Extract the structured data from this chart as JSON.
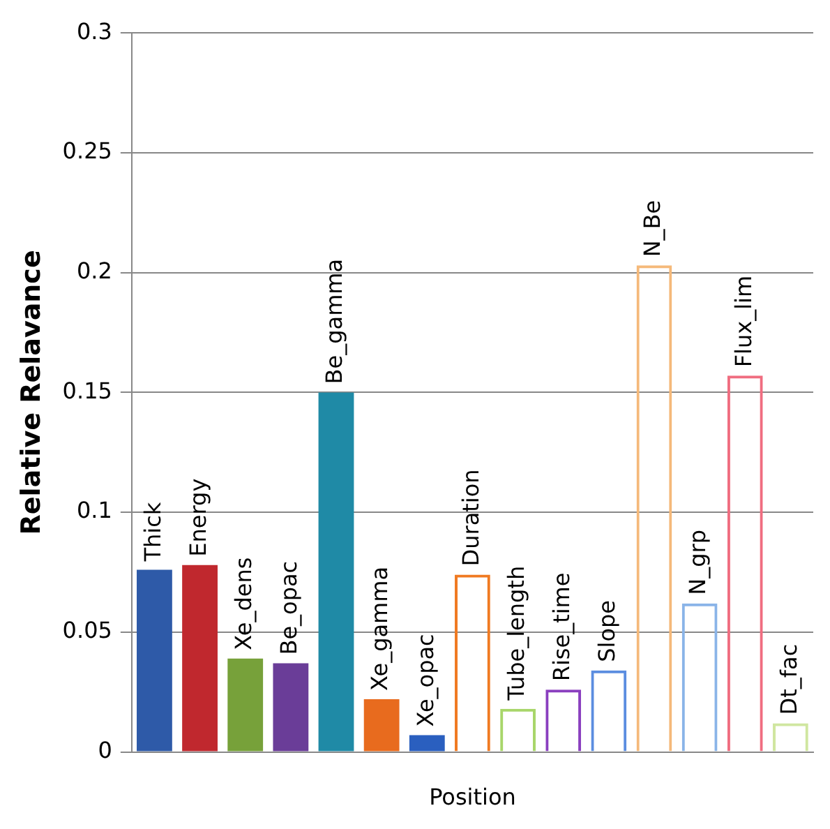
{
  "chart_data": {
    "type": "bar",
    "xlabel": "Position",
    "ylabel": "Relative Relavance",
    "categories": [
      "Thick",
      "Energy",
      "Xe_dens",
      "Be_opac",
      "Be_gamma",
      "Xe_gamma",
      "Xe_opac",
      "Duration",
      "Tube_length",
      "Rise_time",
      "Slope",
      "N_Be",
      "N_grp",
      "Flux_lim",
      "Dt_fac"
    ],
    "series": [
      {
        "values": [
          0.076,
          0.078,
          0.039,
          0.037,
          0.15,
          0.022,
          0.007,
          null,
          null,
          null,
          null,
          null,
          null,
          null,
          null
        ],
        "colors": [
          "#2e5aa8",
          "#c0282e",
          "#77a13a",
          "#6a3d98",
          "#1f8aa6",
          "#e86b1e",
          "#2a5fbf",
          null,
          null,
          null,
          null,
          null,
          null,
          null,
          null
        ]
      },
      {
        "values": [
          null,
          null,
          null,
          null,
          null,
          null,
          null,
          0.074,
          0.018,
          0.026,
          0.034,
          0.203,
          0.062,
          0.157,
          0.012
        ],
        "colors": [
          null,
          null,
          null,
          null,
          null,
          null,
          null,
          "#f07a22",
          "#a8d66a",
          "#8a3fbf",
          "#5b8de0",
          "#f5b97a",
          "#8ab4e8",
          "#f06d80",
          "#d0e6a0"
        ]
      }
    ],
    "ylim": [
      0,
      0.3
    ],
    "yticks": [
      0,
      0.05,
      0.1,
      0.15,
      0.2,
      0.25,
      0.3
    ],
    "grid": "y",
    "tick_labels": "y",
    "legend": false
  }
}
